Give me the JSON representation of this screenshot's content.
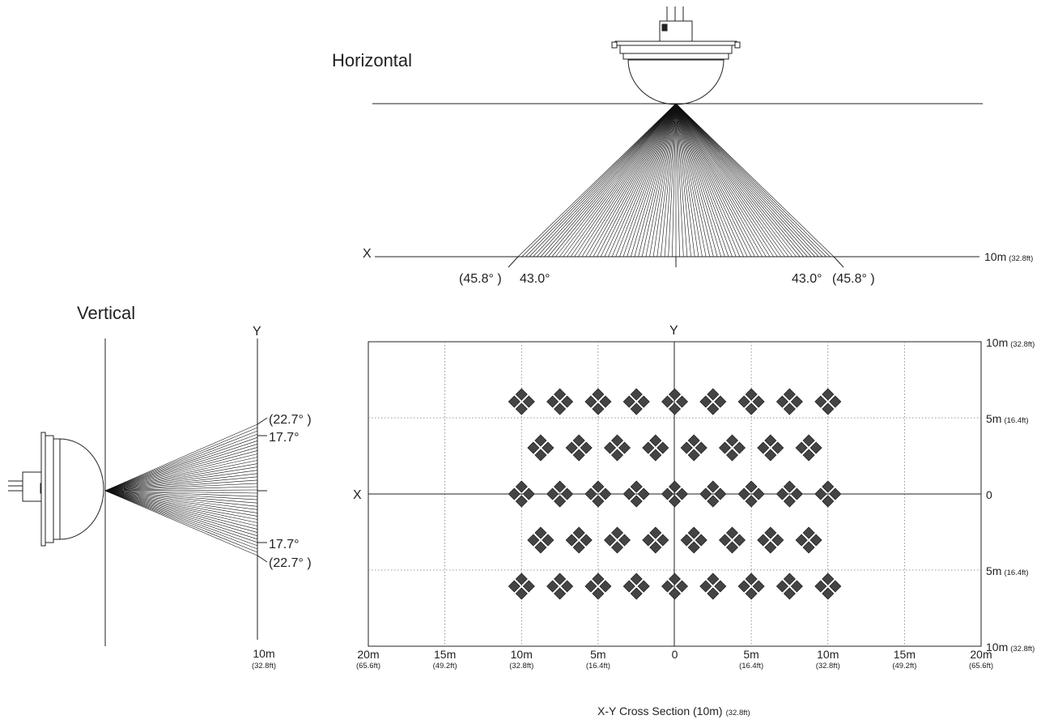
{
  "horizontal": {
    "title": "Horizontal",
    "axis_label": "X",
    "distance_label": "10m",
    "distance_label_ft": "(32.8ft)",
    "angle_inner_left": "43.0°",
    "angle_outer_left": "(45.8°  )",
    "angle_inner_right": "43.0°",
    "angle_outer_right": "(45.8°  )"
  },
  "vertical": {
    "title": "Vertical",
    "axis_label": "Y",
    "distance_label": "10m",
    "distance_label_ft": "(32.8ft)",
    "angle_outer_top": "(22.7°  )",
    "angle_inner_top": "17.7°",
    "angle_inner_bottom": "17.7°",
    "angle_outer_bottom": "(22.7°  )"
  },
  "cross_section": {
    "title": "X-Y Cross Section (10m)",
    "title_ft": "(32.8ft)",
    "x_axis_label": "X",
    "y_axis_label": "Y",
    "x_ticks": [
      {
        "m": "20m",
        "ft": "(65.6ft)"
      },
      {
        "m": "15m",
        "ft": "(49.2ft)"
      },
      {
        "m": "10m",
        "ft": "(32.8ft)"
      },
      {
        "m": "5m",
        "ft": "(16.4ft)"
      },
      {
        "m": "0",
        "ft": ""
      },
      {
        "m": "5m",
        "ft": "(16.4ft)"
      },
      {
        "m": "10m",
        "ft": "(32.8ft)"
      },
      {
        "m": "15m",
        "ft": "(49.2ft)"
      },
      {
        "m": "20m",
        "ft": "(65.6ft)"
      }
    ],
    "y_ticks": [
      {
        "m": "10m",
        "ft": "(32.8ft)"
      },
      {
        "m": "5m",
        "ft": "(16.4ft)"
      },
      {
        "m": "0",
        "ft": ""
      },
      {
        "m": "5m",
        "ft": "(16.4ft)"
      },
      {
        "m": "10m",
        "ft": "(32.8ft)"
      }
    ]
  }
}
